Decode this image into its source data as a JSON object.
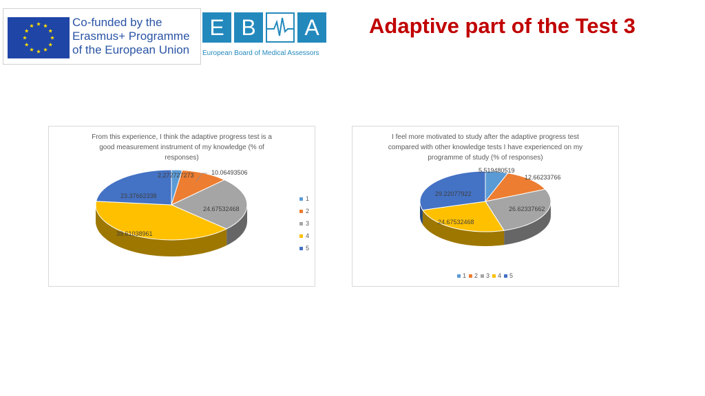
{
  "slide": {
    "title": "Adaptive part of the Test 3"
  },
  "logos": {
    "eu": {
      "text_line1": "Co-funded by the",
      "text_line2": "Erasmus+ Programme",
      "text_line3": "of the European Union"
    },
    "ebma": {
      "letters": [
        "E",
        "B",
        "",
        "A"
      ],
      "subtitle": "European Board of Medical Assessors"
    }
  },
  "colors": {
    "s1": "#5b9bd5",
    "s2": "#ed7d31",
    "s3": "#a5a5a5",
    "s4": "#ffc000",
    "s5": "#4472c4"
  },
  "chart_data": [
    {
      "type": "pie",
      "title": "From this experience, I think the adaptive progress test is a good measurement instrument of my knowledge (% of responses)",
      "title_lines": [
        "From this experience, I think the adaptive progress test is a",
        "good measurement instrument of my knowledge (% of",
        "responses)"
      ],
      "categories": [
        "1",
        "2",
        "3",
        "4",
        "5"
      ],
      "values": [
        2.272727273,
        10.06493506,
        24.67532468,
        39.61038961,
        23.37662338
      ],
      "labels": [
        "2.272727273",
        "10.06493506",
        "24.67532468",
        "39.61038961",
        "23.37662338"
      ],
      "legend_position": "right"
    },
    {
      "type": "pie",
      "title": "I feel more motivated to study after the adaptive progress test compared with other knowledge tests I have experienced on my programme of study (% of responses)",
      "title_lines": [
        "I feel more motivated to study after the adaptive progress test",
        "compared with other knowledge tests I have experienced on my",
        "programme of study (% of responses)"
      ],
      "categories": [
        "1",
        "2",
        "3",
        "4",
        "5"
      ],
      "values": [
        5.519480519,
        12.66233766,
        26.62337662,
        24.67532468,
        29.22077922
      ],
      "labels": [
        "5.519480519",
        "12.66233766",
        "26.62337662",
        "24.67532468",
        "29.22077922"
      ],
      "legend_position": "bottom"
    }
  ]
}
